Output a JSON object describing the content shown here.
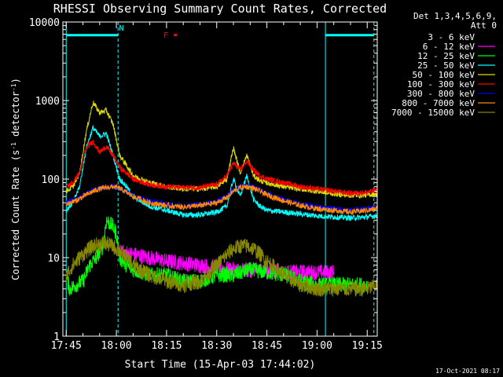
{
  "chart_data": {
    "type": "line",
    "title": "RHESSI Observing Summary Count Rates, Corrected",
    "xlabel": "Start Time (15-Apr-03 17:44:02)",
    "ylabel": "Corrected Count Rate (s-1 detector-1)",
    "ylabel_parts": {
      "pre": "Corrected Count Rate (s",
      "sup1": "-1",
      "mid": " detector",
      "sup2": "-1",
      "post": ")"
    },
    "y_scale": "log",
    "ylim": [
      1,
      10000
    ],
    "xlim_minutes": [
      -1,
      93
    ],
    "xticks": [
      {
        "label": "17:45",
        "minutes": 0
      },
      {
        "label": "18:00",
        "minutes": 15
      },
      {
        "label": "18:15",
        "minutes": 30
      },
      {
        "label": "18:30",
        "minutes": 45
      },
      {
        "label": "18:45",
        "minutes": 60
      },
      {
        "label": "19:00",
        "minutes": 75
      },
      {
        "label": "19:15",
        "minutes": 90
      }
    ],
    "yticks": [
      {
        "label": "1",
        "value": 1
      },
      {
        "label": "10",
        "value": 10
      },
      {
        "label": "100",
        "value": 100
      },
      {
        "label": "1000",
        "value": 1000
      },
      {
        "label": "10000",
        "value": 10000
      }
    ],
    "legend_header": [
      "Det 1,3,4,5,6,9,",
      "Att 0"
    ],
    "legend_position": "outside-right",
    "series": [
      {
        "name": "3 - 6 keV",
        "color": "#000000",
        "points": [
          [
            0,
            6
          ],
          [
            2,
            8
          ],
          [
            5,
            8
          ],
          [
            8,
            9
          ],
          [
            10,
            8
          ],
          [
            12,
            7
          ],
          [
            14,
            6
          ],
          [
            15,
            5
          ],
          [
            16,
            12
          ],
          [
            18,
            13
          ],
          [
            20,
            12
          ],
          [
            25,
            11
          ],
          [
            30,
            10
          ],
          [
            35,
            9
          ],
          [
            40,
            7
          ],
          [
            42,
            6
          ],
          [
            44,
            5
          ],
          [
            46,
            4
          ],
          [
            48,
            5
          ],
          [
            50,
            5
          ],
          [
            52,
            4
          ],
          [
            54,
            3
          ],
          [
            56,
            2.5
          ],
          [
            58,
            2
          ],
          [
            60,
            1.6
          ],
          [
            62,
            1.3
          ],
          [
            65,
            1.1
          ],
          [
            70,
            1.2
          ],
          [
            75,
            1.2
          ]
        ]
      },
      {
        "name": "6 - 12 keV",
        "color": "#ff00ff",
        "points": [
          [
            16,
            12
          ],
          [
            20,
            11
          ],
          [
            25,
            10
          ],
          [
            30,
            9
          ],
          [
            35,
            8.5
          ],
          [
            40,
            8
          ],
          [
            45,
            7.5
          ],
          [
            50,
            7
          ],
          [
            55,
            7
          ],
          [
            60,
            7
          ],
          [
            65,
            6.5
          ],
          [
            70,
            6.5
          ],
          [
            75,
            6.5
          ],
          [
            80,
            6.5
          ]
        ]
      },
      {
        "name": "12 - 25 keV",
        "color": "#00ff00",
        "points": [
          [
            0,
            6
          ],
          [
            1,
            4
          ],
          [
            3,
            4.5
          ],
          [
            5,
            5
          ],
          [
            7,
            8
          ],
          [
            9,
            10
          ],
          [
            11,
            14
          ],
          [
            12,
            30
          ],
          [
            14,
            25
          ],
          [
            15,
            20
          ],
          [
            16,
            10
          ],
          [
            18,
            8
          ],
          [
            20,
            7
          ],
          [
            25,
            6
          ],
          [
            30,
            6
          ],
          [
            35,
            5
          ],
          [
            40,
            5
          ],
          [
            45,
            6
          ],
          [
            50,
            6
          ],
          [
            55,
            7
          ],
          [
            60,
            6.5
          ],
          [
            65,
            6
          ],
          [
            70,
            5
          ],
          [
            75,
            4.5
          ],
          [
            80,
            4.5
          ],
          [
            85,
            4.5
          ],
          [
            90,
            4.5
          ]
        ]
      },
      {
        "name": "25 - 50 keV",
        "color": "#00ffff",
        "points": [
          [
            0,
            40
          ],
          [
            2,
            50
          ],
          [
            4,
            80
          ],
          [
            6,
            250
          ],
          [
            8,
            450
          ],
          [
            10,
            350
          ],
          [
            12,
            380
          ],
          [
            14,
            200
          ],
          [
            16,
            100
          ],
          [
            18,
            80
          ],
          [
            20,
            60
          ],
          [
            25,
            45
          ],
          [
            30,
            40
          ],
          [
            35,
            35
          ],
          [
            40,
            35
          ],
          [
            45,
            38
          ],
          [
            48,
            45
          ],
          [
            50,
            100
          ],
          [
            52,
            60
          ],
          [
            54,
            110
          ],
          [
            56,
            55
          ],
          [
            58,
            45
          ],
          [
            60,
            40
          ],
          [
            65,
            38
          ],
          [
            70,
            36
          ],
          [
            75,
            34
          ],
          [
            80,
            33
          ],
          [
            85,
            32
          ],
          [
            90,
            33
          ],
          [
            93,
            34
          ]
        ]
      },
      {
        "name": "50 - 100 keV",
        "color": "#dddd00",
        "points": [
          [
            0,
            70
          ],
          [
            2,
            80
          ],
          [
            4,
            120
          ],
          [
            6,
            400
          ],
          [
            8,
            950
          ],
          [
            10,
            700
          ],
          [
            12,
            750
          ],
          [
            14,
            500
          ],
          [
            16,
            200
          ],
          [
            18,
            150
          ],
          [
            20,
            110
          ],
          [
            25,
            90
          ],
          [
            30,
            80
          ],
          [
            35,
            75
          ],
          [
            40,
            75
          ],
          [
            45,
            80
          ],
          [
            48,
            100
          ],
          [
            50,
            250
          ],
          [
            52,
            120
          ],
          [
            54,
            200
          ],
          [
            56,
            110
          ],
          [
            58,
            95
          ],
          [
            60,
            90
          ],
          [
            65,
            80
          ],
          [
            70,
            75
          ],
          [
            75,
            70
          ],
          [
            80,
            65
          ],
          [
            85,
            62
          ],
          [
            90,
            63
          ],
          [
            93,
            65
          ]
        ]
      },
      {
        "name": "100 - 300 keV",
        "color": "#ff0000",
        "points": [
          [
            0,
            80
          ],
          [
            2,
            90
          ],
          [
            4,
            120
          ],
          [
            6,
            250
          ],
          [
            8,
            300
          ],
          [
            10,
            220
          ],
          [
            12,
            260
          ],
          [
            14,
            200
          ],
          [
            16,
            140
          ],
          [
            18,
            120
          ],
          [
            20,
            100
          ],
          [
            25,
            85
          ],
          [
            30,
            80
          ],
          [
            35,
            78
          ],
          [
            40,
            78
          ],
          [
            45,
            85
          ],
          [
            48,
            110
          ],
          [
            50,
            160
          ],
          [
            52,
            130
          ],
          [
            54,
            170
          ],
          [
            56,
            130
          ],
          [
            58,
            110
          ],
          [
            60,
            100
          ],
          [
            65,
            90
          ],
          [
            70,
            80
          ],
          [
            75,
            75
          ],
          [
            80,
            70
          ],
          [
            85,
            66
          ],
          [
            90,
            68
          ],
          [
            93,
            72
          ]
        ]
      },
      {
        "name": "300 - 800 keV",
        "color": "#0000ff",
        "points": [
          [
            0,
            50
          ],
          [
            3,
            55
          ],
          [
            6,
            65
          ],
          [
            9,
            75
          ],
          [
            12,
            80
          ],
          [
            14,
            82
          ],
          [
            16,
            78
          ],
          [
            18,
            70
          ],
          [
            20,
            62
          ],
          [
            25,
            52
          ],
          [
            30,
            48
          ],
          [
            35,
            46
          ],
          [
            40,
            48
          ],
          [
            45,
            52
          ],
          [
            48,
            60
          ],
          [
            50,
            72
          ],
          [
            52,
            80
          ],
          [
            54,
            82
          ],
          [
            56,
            78
          ],
          [
            58,
            72
          ],
          [
            60,
            65
          ],
          [
            65,
            55
          ],
          [
            70,
            48
          ],
          [
            75,
            44
          ],
          [
            80,
            42
          ],
          [
            85,
            40
          ],
          [
            90,
            42
          ],
          [
            93,
            44
          ]
        ]
      },
      {
        "name": "800 - 7000 keV",
        "color": "#ff8800",
        "points": [
          [
            0,
            48
          ],
          [
            3,
            53
          ],
          [
            6,
            63
          ],
          [
            9,
            73
          ],
          [
            12,
            78
          ],
          [
            14,
            80
          ],
          [
            16,
            76
          ],
          [
            18,
            68
          ],
          [
            20,
            60
          ],
          [
            25,
            50
          ],
          [
            30,
            46
          ],
          [
            35,
            44
          ],
          [
            40,
            46
          ],
          [
            45,
            50
          ],
          [
            48,
            58
          ],
          [
            50,
            70
          ],
          [
            52,
            78
          ],
          [
            54,
            80
          ],
          [
            56,
            76
          ],
          [
            58,
            70
          ],
          [
            60,
            63
          ],
          [
            65,
            53
          ],
          [
            70,
            46
          ],
          [
            75,
            42
          ],
          [
            80,
            40
          ],
          [
            85,
            38
          ],
          [
            90,
            40
          ],
          [
            93,
            42
          ]
        ]
      },
      {
        "name": "7000 - 15000 keV",
        "color": "#888800",
        "points": [
          [
            0,
            6
          ],
          [
            2,
            8
          ],
          [
            4,
            10
          ],
          [
            6,
            12
          ],
          [
            8,
            14
          ],
          [
            10,
            15
          ],
          [
            12,
            15
          ],
          [
            14,
            14
          ],
          [
            16,
            12
          ],
          [
            18,
            10
          ],
          [
            20,
            8
          ],
          [
            25,
            6
          ],
          [
            30,
            5
          ],
          [
            35,
            4.5
          ],
          [
            40,
            5
          ],
          [
            45,
            8
          ],
          [
            48,
            11
          ],
          [
            50,
            13
          ],
          [
            52,
            14
          ],
          [
            54,
            14
          ],
          [
            56,
            13
          ],
          [
            58,
            11
          ],
          [
            60,
            9
          ],
          [
            65,
            6
          ],
          [
            70,
            4.5
          ],
          [
            75,
            4
          ],
          [
            80,
            4
          ],
          [
            85,
            4
          ],
          [
            90,
            4
          ],
          [
            93,
            4.5
          ]
        ]
      }
    ],
    "annotations": [
      {
        "label": "N",
        "color": "#00ffff",
        "minutes": 16.5,
        "value": 7800
      },
      {
        "label": "F",
        "color": "#ff0000",
        "minutes": 29.8,
        "value": 6300
      }
    ],
    "attenuator_bars": [
      {
        "from": 0,
        "to": 15.5,
        "value": 6800,
        "color": "#00ffff"
      },
      {
        "from": 77.5,
        "to": 92,
        "value": 6800,
        "color": "#00ffff"
      }
    ],
    "vertical_lines": [
      {
        "minutes": 0,
        "style": "solid",
        "color": "#00ffff"
      },
      {
        "minutes": 15.5,
        "style": "dashed",
        "color": "#00ffff"
      },
      {
        "minutes": 77.5,
        "style": "solid",
        "color": "#00ffff"
      },
      {
        "minutes": 92,
        "style": "dashed",
        "color": "#00ffff"
      }
    ]
  },
  "footer_timestamp": "17-Oct-2021 08:17"
}
